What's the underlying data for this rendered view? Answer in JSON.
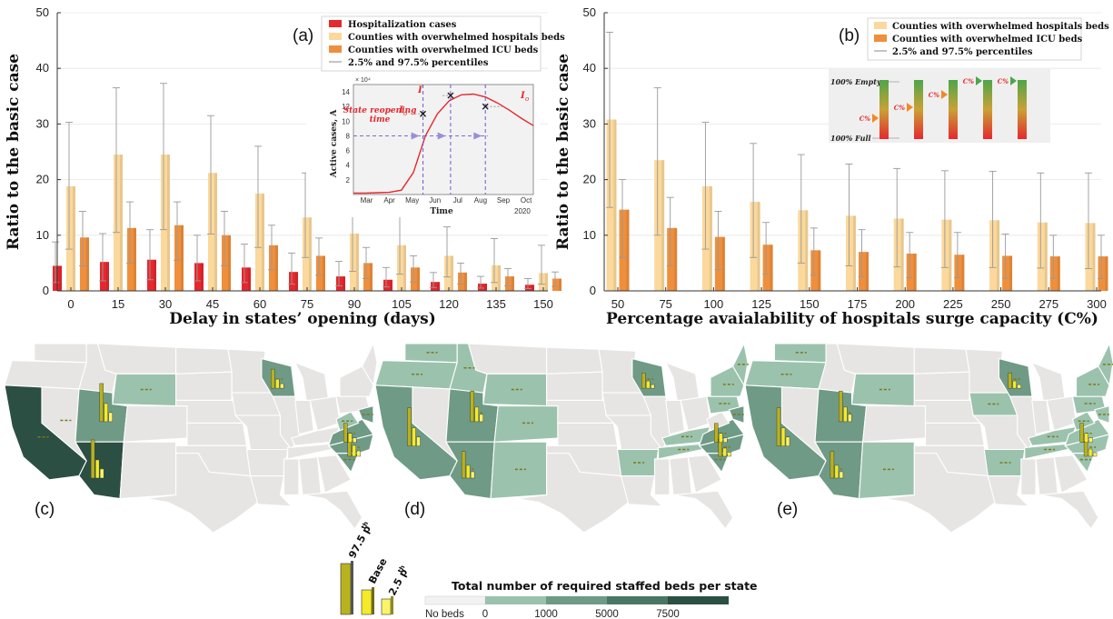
{
  "colors": {
    "hosp": "#e5282d",
    "beds": "#fbd89b",
    "icu": "#ef8f3c",
    "pct": "#999999",
    "map_empty": "#e6e5e3",
    "map_l1": "#9bc2ad",
    "map_l2": "#6f9a86",
    "map_l3": "#4a7665",
    "map_l4": "#2c4f43"
  },
  "chart_data": [
    {
      "panel": "(a)",
      "type": "bar",
      "xlabel": "Delay in states’ opening (days)",
      "ylabel": "Ratio to the basic case",
      "ylim": [
        0,
        50
      ],
      "yticks": [
        "0",
        "10",
        "20",
        "30",
        "40",
        "50"
      ],
      "categories": [
        "0",
        "15",
        "30",
        "45",
        "60",
        "75",
        "90",
        "105",
        "120",
        "135",
        "150"
      ],
      "legend": [
        "Hospitalization cases",
        "Counties with overwhelmed hospitals beds",
        "Counties with overwhelmed ICU beds",
        "2.5% and 97.5% percentiles"
      ],
      "series": [
        {
          "name": "Hospitalization cases",
          "values": [
            4.5,
            5.2,
            5.6,
            5.0,
            4.2,
            3.4,
            2.6,
            2.0,
            1.6,
            1.3,
            1.1
          ],
          "low": [
            1.5,
            1.8,
            2.0,
            1.8,
            1.5,
            1.2,
            0.9,
            0.7,
            0.6,
            0.5,
            0.4
          ],
          "high": [
            8.8,
            10.3,
            11.0,
            10.0,
            8.4,
            6.8,
            5.3,
            4.2,
            3.3,
            2.6,
            2.2
          ]
        },
        {
          "name": "Counties with overwhelmed hospitals beds",
          "values": [
            18.8,
            24.5,
            24.5,
            21.2,
            17.5,
            13.2,
            10.3,
            8.2,
            6.3,
            4.6,
            3.2
          ],
          "low": [
            7.5,
            10.5,
            11.0,
            10.2,
            7.8,
            6.0,
            3.5,
            3.0,
            2.5,
            1.5,
            1.2
          ],
          "high": [
            30.3,
            36.5,
            37.3,
            31.5,
            26.0,
            21.2,
            16.0,
            14.0,
            11.5,
            9.4,
            8.2
          ]
        },
        {
          "name": "Counties with overwhelmed ICU beds",
          "values": [
            9.6,
            11.3,
            11.8,
            10.0,
            8.2,
            6.3,
            5.0,
            4.2,
            3.3,
            2.6,
            2.2
          ],
          "low": [
            4.5,
            5.0,
            5.5,
            4.5,
            3.8,
            2.8,
            2.2,
            1.6,
            1.2,
            0.9,
            0.8
          ],
          "high": [
            14.3,
            16.0,
            16.0,
            14.3,
            11.8,
            9.5,
            7.8,
            6.3,
            5.0,
            4.0,
            3.4
          ]
        }
      ],
      "inset": {
        "ylabel": "Active cases, A",
        "xlabel": "Time",
        "multiplier": "× 10⁴",
        "yticks": [
          "2",
          "4",
          "6",
          "8",
          "10",
          "12",
          "14"
        ],
        "xticks": [
          "Mar",
          "Apr",
          "May",
          "Jun",
          "Jul",
          "Aug",
          "Sep",
          "Oct"
        ],
        "year": "2020",
        "ymax": 15,
        "curve_x": [
          0,
          0.5,
          1,
          1.5,
          2,
          2.5,
          3,
          3.5,
          4,
          4.5,
          5,
          5.5,
          6,
          6.5,
          7,
          7.5
        ],
        "curve_y": [
          0.2,
          0.2,
          0.25,
          0.3,
          0.6,
          3.0,
          8.0,
          11.0,
          12.8,
          13.6,
          13.7,
          13.3,
          12.5,
          11.5,
          10.4,
          9.4
        ],
        "markers": [
          {
            "x": 2.9,
            "y": 11.0
          },
          {
            "x": 4.05,
            "y": 13.5
          },
          {
            "x": 5.5,
            "y": 12.0
          }
        ],
        "labels": {
          "i_left": "I",
          "i_left_sub": "o",
          "i_top": "I",
          "i_right": "I",
          "i_right_sub": "o",
          "reopen1": "State reopening",
          "reopen2": "time"
        }
      }
    },
    {
      "panel": "(b)",
      "type": "bar",
      "xlabel": "Percentage avaialability of hospitals surge capacity (C%)",
      "ylabel": "Ratio to the basic case",
      "ylim": [
        0,
        50
      ],
      "yticks": [
        "0",
        "10",
        "20",
        "30",
        "40",
        "50"
      ],
      "categories": [
        "50",
        "75",
        "100",
        "125",
        "150",
        "175",
        "200",
        "225",
        "250",
        "275",
        "300"
      ],
      "legend": [
        "Counties with overwhelmed hospitals beds",
        "Counties with overwhelmed ICU beds",
        "2.5% and 97.5% percentiles"
      ],
      "series": [
        {
          "name": "Counties with overwhelmed hospitals beds",
          "values": [
            30.8,
            23.5,
            18.8,
            16.0,
            14.5,
            13.5,
            13.0,
            12.8,
            12.7,
            12.3,
            12.2
          ],
          "low": [
            15.0,
            10.0,
            7.5,
            6.0,
            5.0,
            4.5,
            4.3,
            4.2,
            4.2,
            4.1,
            4.0
          ],
          "high": [
            46.5,
            36.5,
            30.3,
            26.5,
            24.5,
            22.8,
            22.0,
            21.6,
            21.5,
            21.2,
            21.2
          ]
        },
        {
          "name": "Counties with overwhelmed ICU beds",
          "values": [
            14.6,
            11.3,
            9.7,
            8.3,
            7.3,
            7.0,
            6.7,
            6.5,
            6.3,
            6.2,
            6.2
          ],
          "low": [
            6.0,
            4.5,
            3.8,
            3.0,
            2.8,
            2.5,
            2.4,
            2.4,
            2.3,
            2.3,
            2.2
          ],
          "high": [
            20.0,
            16.8,
            14.3,
            12.3,
            11.3,
            11.0,
            10.5,
            10.5,
            10.2,
            10.0,
            10.0
          ]
        }
      ],
      "inset": {
        "top": "100% Empty",
        "bottom": "100% Full",
        "labels": [
          "C%",
          "C%",
          "C%",
          "C%",
          "C%"
        ]
      }
    }
  ],
  "maps": {
    "panels": [
      "(c)",
      "(d)",
      "(e)"
    ],
    "bar_legend": {
      "high": "97.5 p",
      "high_sup": "th",
      "base": "Base",
      "low": "2.5 p",
      "low_sup": "th"
    },
    "colorbar": {
      "title": "Total number of required staffed beds per state",
      "labels": [
        "No beds",
        "0",
        "1000",
        "5000",
        "7500"
      ]
    }
  }
}
